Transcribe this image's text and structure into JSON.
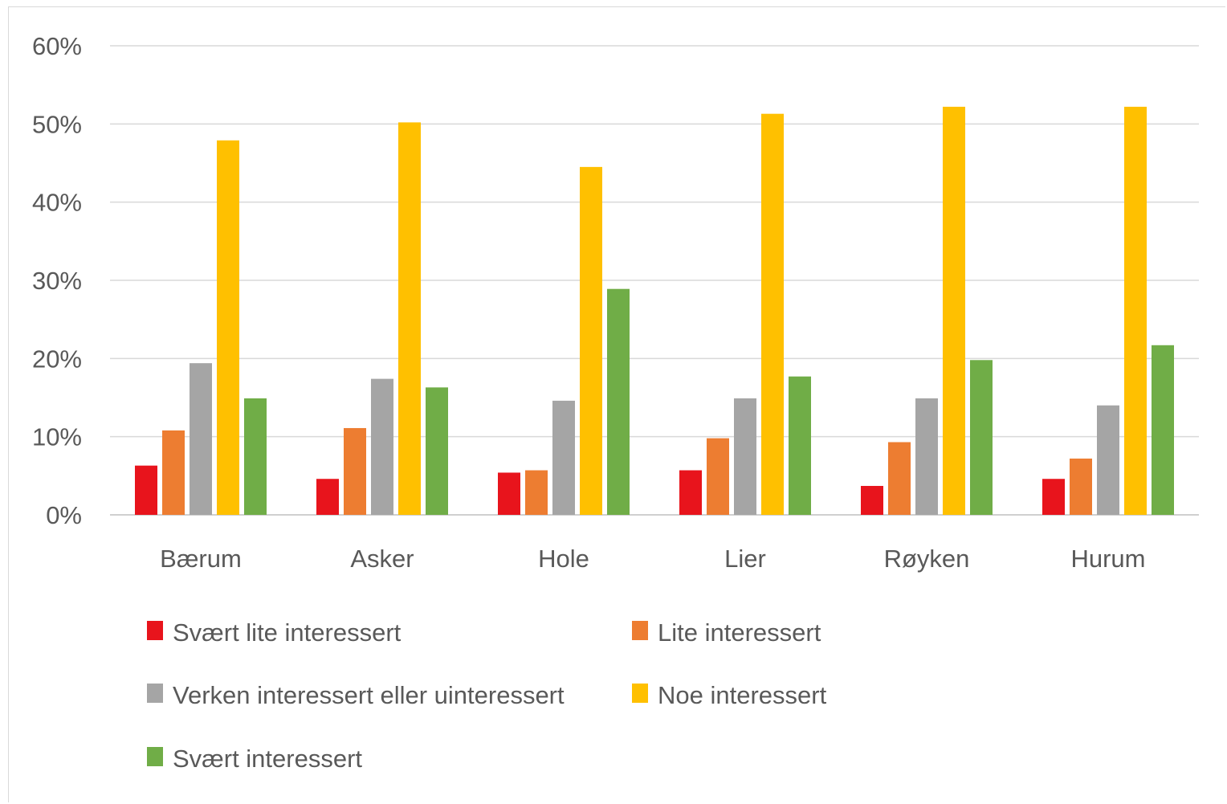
{
  "chart_data": {
    "type": "bar",
    "title": "",
    "xlabel": "",
    "ylabel": "",
    "ylim": [
      0,
      60
    ],
    "yticks": [
      "0%",
      "10%",
      "20%",
      "30%",
      "40%",
      "50%",
      "60%"
    ],
    "grid": true,
    "legend_position": "bottom",
    "categories": [
      "Bærum",
      "Asker",
      "Hole",
      "Lier",
      "Røyken",
      "Hurum"
    ],
    "series": [
      {
        "name": "Svært lite interessert",
        "color": "#e8141c",
        "values": [
          6.3,
          4.6,
          5.4,
          5.7,
          3.7,
          4.6
        ]
      },
      {
        "name": "Lite interessert",
        "color": "#ed7d31",
        "values": [
          10.8,
          11.1,
          5.7,
          9.8,
          9.3,
          7.2
        ]
      },
      {
        "name": "Verken interessert eller uinteressert",
        "color": "#a5a5a5",
        "values": [
          19.4,
          17.4,
          14.6,
          14.9,
          14.9,
          14.0
        ]
      },
      {
        "name": "Noe interessert",
        "color": "#ffc000",
        "values": [
          47.9,
          50.2,
          44.5,
          51.3,
          52.2,
          52.2
        ]
      },
      {
        "name": "Svært interessert",
        "color": "#70ad47",
        "values": [
          14.9,
          16.3,
          28.9,
          17.7,
          19.8,
          21.7
        ]
      }
    ]
  }
}
